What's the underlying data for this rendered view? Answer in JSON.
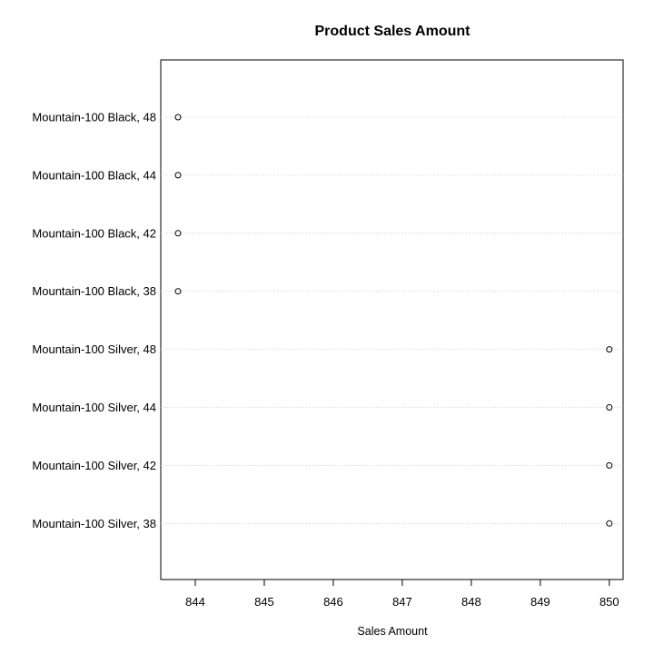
{
  "chart_data": {
    "type": "scatter",
    "subtype": "dotchart",
    "title": "Product Sales Amount",
    "xlabel": "Sales Amount",
    "ylabel": "",
    "categories": [
      "Mountain-100 Black, 48",
      "Mountain-100 Black, 44",
      "Mountain-100 Black, 42",
      "Mountain-100 Black, 38",
      "Mountain-100 Silver, 48",
      "Mountain-100 Silver, 44",
      "Mountain-100 Silver, 42",
      "Mountain-100 Silver, 38"
    ],
    "values": [
      843.75,
      843.75,
      843.75,
      843.75,
      850.0,
      850.0,
      850.0,
      850.0
    ],
    "xlim": [
      843.5,
      850.2
    ],
    "xticks": [
      844,
      845,
      846,
      847,
      848,
      849,
      850
    ],
    "xtick_labels": [
      "844",
      "845",
      "846",
      "847",
      "848",
      "849",
      "850"
    ],
    "grid": "horizontal dotted guide lines",
    "marker": "open circle",
    "colors": {
      "axis": "#000000",
      "guide": "#c8c8c8",
      "marker": "#000000",
      "background": "#ffffff"
    }
  }
}
